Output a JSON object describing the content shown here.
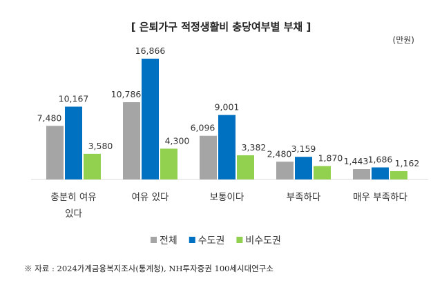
{
  "chart_data": {
    "type": "bar",
    "title": "[ 은퇴가구 적정생활비 충당여부별 부채 ]",
    "unit": "(만원)",
    "categories": [
      [
        "충분히 여유",
        "있다"
      ],
      [
        "여유 있다"
      ],
      [
        "보통이다"
      ],
      [
        "부족하다"
      ],
      [
        "매우 부족하다"
      ]
    ],
    "series": [
      {
        "name": "전체",
        "color": "#a5a5a5",
        "values": [
          7480,
          10786,
          6096,
          2480,
          1443
        ]
      },
      {
        "name": "수도권",
        "color": "#0070c0",
        "values": [
          10167,
          16866,
          9001,
          3159,
          1686
        ]
      },
      {
        "name": "비수도권",
        "color": "#92d050",
        "values": [
          3580,
          4300,
          3382,
          1870,
          1162
        ]
      }
    ],
    "ylim": [
      0,
      17000
    ],
    "grid": false,
    "legend": "bottom",
    "source": "※ 자료 : 2024가계금융복지조사(통계청), NH투자증권 100세시대연구소"
  }
}
